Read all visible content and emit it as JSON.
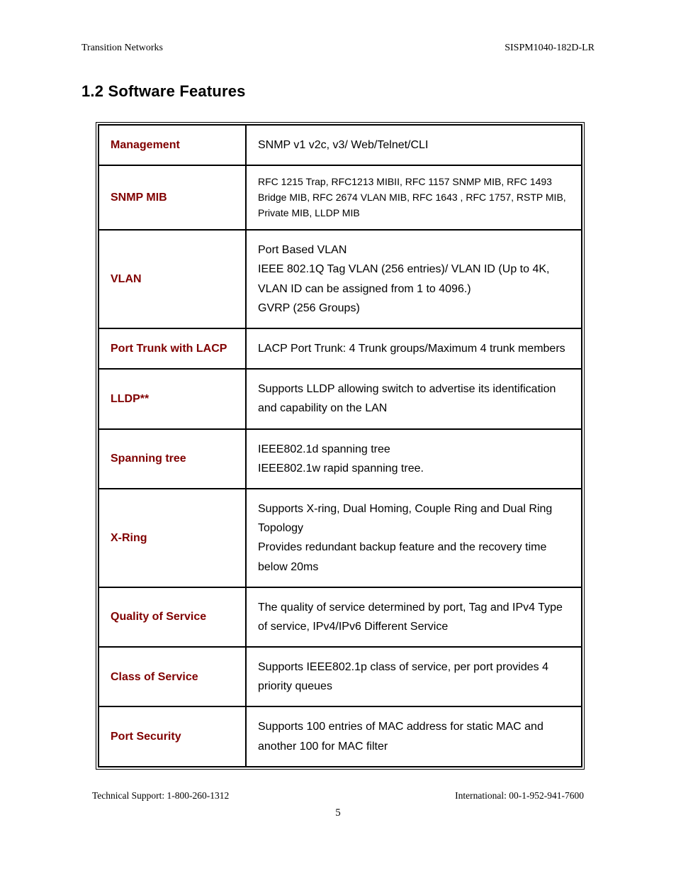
{
  "header": {
    "left": "Transition Networks",
    "right": "SISPM1040-182D-LR"
  },
  "section_title": "1.2  Software Features",
  "table": {
    "label_color": "#800000",
    "border_color": "#000000",
    "rows": [
      {
        "label": "Management",
        "value": "SNMP v1 v2c, v3/ Web/Telnet/CLI",
        "small": false
      },
      {
        "label": "SNMP MIB",
        "value": "RFC 1215 Trap, RFC1213 MIBII, RFC 1157 SNMP MIB, RFC 1493 Bridge MIB, RFC 2674 VLAN MIB, RFC 1643 , RFC 1757, RSTP MIB, Private MIB, LLDP MIB",
        "small": true
      },
      {
        "label": "VLAN",
        "value": "Port Based VLAN\nIEEE 802.1Q Tag VLAN (256 entries)/ VLAN ID (Up to 4K, VLAN ID can be assigned from 1 to 4096.)\nGVRP (256 Groups)",
        "small": false
      },
      {
        "label": "Port Trunk with LACP",
        "value": "LACP Port Trunk: 4 Trunk groups/Maximum 4 trunk members",
        "small": false
      },
      {
        "label": "LLDP**",
        "value": "Supports LLDP allowing switch to advertise its identification and capability on the LAN",
        "small": false
      },
      {
        "label": "Spanning tree",
        "value": "IEEE802.1d spanning tree\nIEEE802.1w rapid spanning tree.",
        "small": false
      },
      {
        "label": "X-Ring",
        "value": "Supports X-ring, Dual Homing, Couple Ring and Dual Ring Topology\nProvides redundant backup feature and the recovery time below 20ms",
        "small": false
      },
      {
        "label": "Quality of Service",
        "value": "The quality of service determined by port, Tag and IPv4 Type of service, IPv4/IPv6 Different Service",
        "small": false
      },
      {
        "label": "Class of Service",
        "value": "Supports IEEE802.1p class of service, per port provides 4 priority queues",
        "small": false
      },
      {
        "label": "Port Security",
        "value": "Supports 100 entries of MAC address for static MAC and another 100 for MAC filter",
        "small": false
      }
    ]
  },
  "footer": {
    "left": "Technical Support: 1-800-260-1312",
    "right": "International: 00-1-952-941-7600",
    "page": "5"
  }
}
